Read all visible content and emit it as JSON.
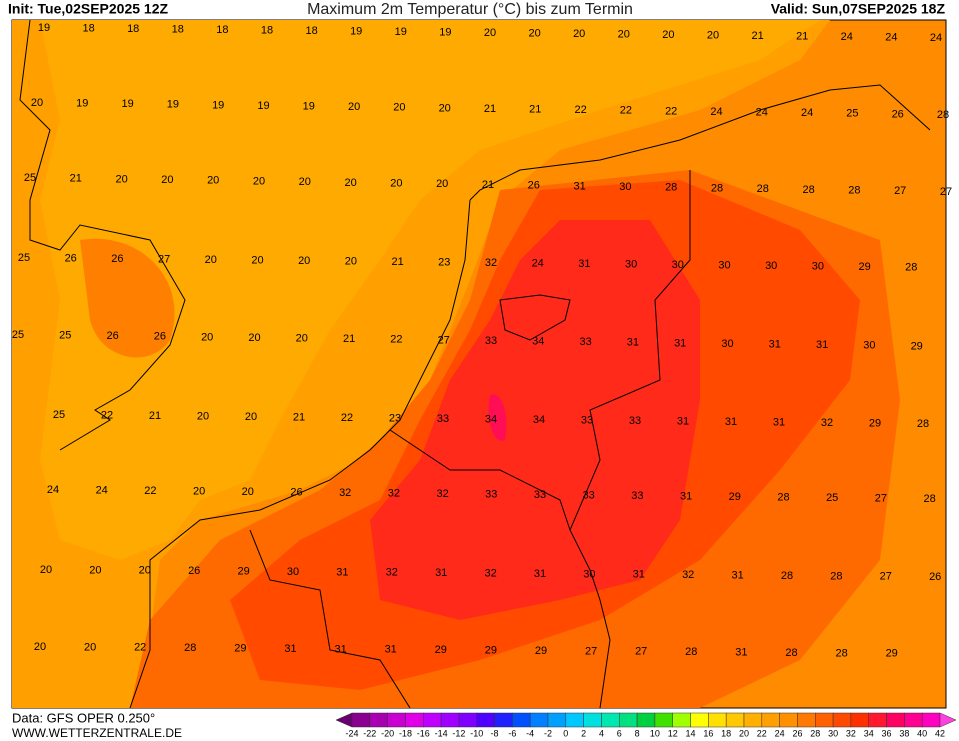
{
  "header": {
    "init": "Init: Tue,02SEP2025 12Z",
    "title": "Maximum 2m Temperatur (°C) bis zum Termin",
    "valid": "Valid: Sun,07SEP2025 18Z"
  },
  "map": {
    "rows": [
      [
        19,
        18,
        18,
        18,
        18,
        18,
        18,
        19,
        19,
        19,
        20,
        20,
        20,
        20,
        20,
        20,
        21,
        21,
        24,
        24,
        24
      ],
      [
        20,
        19,
        19,
        19,
        19,
        19,
        19,
        20,
        20,
        20,
        21,
        21,
        22,
        22,
        22,
        24,
        24,
        24,
        25,
        26,
        28
      ],
      [
        25,
        21,
        20,
        20,
        20,
        20,
        20,
        20,
        20,
        20,
        21,
        26,
        31,
        30,
        28,
        28,
        28,
        28,
        28,
        27,
        27
      ],
      [
        25,
        26,
        26,
        27,
        20,
        20,
        20,
        20,
        21,
        23,
        32,
        24,
        31,
        30,
        30,
        30,
        30,
        30,
        29,
        28
      ],
      [
        25,
        25,
        26,
        26,
        20,
        20,
        20,
        21,
        22,
        27,
        33,
        34,
        33,
        31,
        31,
        30,
        31,
        31,
        30,
        29
      ],
      [
        25,
        22,
        21,
        20,
        20,
        21,
        22,
        23,
        33,
        34,
        34,
        33,
        33,
        31,
        31,
        31,
        32,
        29,
        28
      ],
      [
        24,
        24,
        22,
        20,
        20,
        26,
        32,
        32,
        32,
        33,
        33,
        33,
        33,
        31,
        29,
        28,
        25,
        27,
        28
      ],
      [
        20,
        20,
        20,
        26,
        29,
        30,
        31,
        32,
        31,
        32,
        31,
        30,
        31,
        32,
        31,
        28,
        28,
        27,
        26
      ],
      [
        20,
        20,
        22,
        28,
        29,
        31,
        31,
        31,
        29,
        29,
        29,
        27,
        27,
        28,
        31,
        28,
        28,
        29
      ]
    ]
  },
  "legend": {
    "ticks": [
      -24,
      -22,
      -20,
      -18,
      -16,
      -14,
      -12,
      -10,
      -8,
      -6,
      -4,
      -2,
      0,
      2,
      4,
      6,
      8,
      10,
      12,
      14,
      16,
      18,
      20,
      22,
      24,
      26,
      28,
      30,
      32,
      34,
      36,
      38,
      40,
      42
    ],
    "colors": [
      "#6a0070",
      "#8a0090",
      "#a800b0",
      "#c800d0",
      "#e000e8",
      "#c000ff",
      "#a000ff",
      "#8000ff",
      "#5000ff",
      "#2020ff",
      "#0050ff",
      "#0080ff",
      "#00a0ff",
      "#00c8ff",
      "#00e0e0",
      "#00e8b0",
      "#00e080",
      "#00d040",
      "#40e000",
      "#a0ff00",
      "#ffff00",
      "#ffe000",
      "#ffc800",
      "#ffb000",
      "#ffa000",
      "#ff9000",
      "#ff7800",
      "#ff6000",
      "#ff4800",
      "#ff3000",
      "#ff1830",
      "#ff0060",
      "#ff0090",
      "#ff00c0",
      "#ff40e0"
    ]
  },
  "footer": {
    "data": "Data: GFS OPER 0.250°",
    "site": "WWW.WETTERZENTRALE.DE"
  }
}
